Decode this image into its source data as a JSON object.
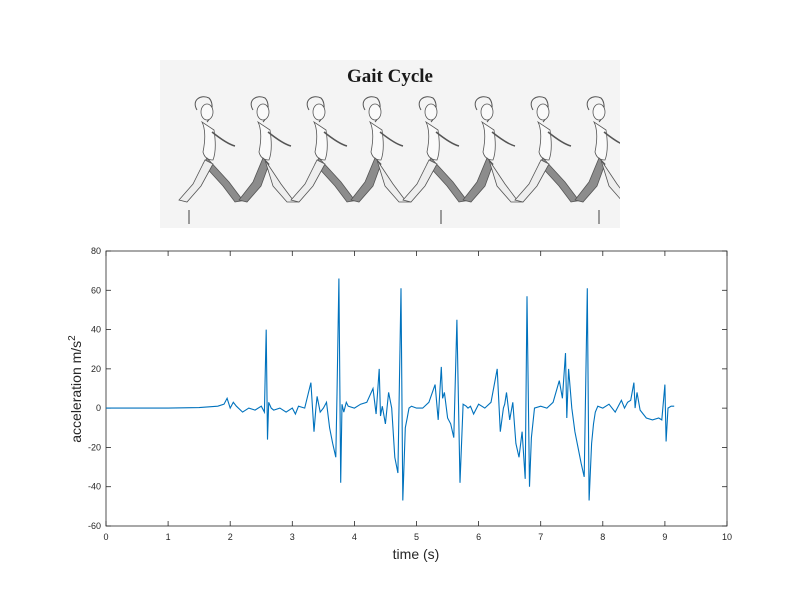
{
  "illustration": {
    "title": "Gait Cycle",
    "figure_count": 8
  },
  "colors": {
    "line": "#0072bd",
    "axis": "#262626",
    "leg_shade": "#8c8c8c",
    "figure_outline": "#555555"
  },
  "chart_data": {
    "type": "line",
    "title": "",
    "xlabel": "time (s)",
    "ylabel": "acceleration m/s",
    "ylabel_superscript": "2",
    "xlim": [
      0,
      10
    ],
    "ylim": [
      -60,
      80
    ],
    "xticks": [
      0,
      1,
      2,
      3,
      4,
      5,
      6,
      7,
      8,
      9,
      10
    ],
    "yticks": [
      -60,
      -40,
      -20,
      0,
      20,
      40,
      60,
      80
    ],
    "grid": false,
    "series": [
      {
        "x": [
          0,
          0.5,
          1.0,
          1.5,
          1.8,
          1.9,
          1.95,
          2.0,
          2.05,
          2.1,
          2.2,
          2.3,
          2.4,
          2.5,
          2.55,
          2.58,
          2.6,
          2.62,
          2.66,
          2.7,
          2.8,
          2.9,
          3.0,
          3.05,
          3.1,
          3.2,
          3.3,
          3.35,
          3.38,
          3.4,
          3.45,
          3.5,
          3.55,
          3.6,
          3.65,
          3.7,
          3.72,
          3.75,
          3.78,
          3.8,
          3.83,
          3.87,
          3.9,
          4.0,
          4.1,
          4.2,
          4.3,
          4.35,
          4.4,
          4.42,
          4.45,
          4.5,
          4.55,
          4.6,
          4.65,
          4.7,
          4.75,
          4.78,
          4.82,
          4.85,
          4.88,
          4.92,
          5.0,
          5.1,
          5.2,
          5.3,
          5.35,
          5.4,
          5.42,
          5.45,
          5.5,
          5.55,
          5.6,
          5.65,
          5.7,
          5.75,
          5.8,
          5.83,
          5.87,
          5.92,
          6.0,
          6.1,
          6.2,
          6.3,
          6.35,
          6.4,
          6.42,
          6.45,
          6.5,
          6.55,
          6.6,
          6.65,
          6.7,
          6.75,
          6.78,
          6.82,
          6.85,
          6.9,
          7.0,
          7.1,
          7.2,
          7.3,
          7.35,
          7.4,
          7.42,
          7.45,
          7.5,
          7.55,
          7.6,
          7.65,
          7.7,
          7.75,
          7.78,
          7.82,
          7.85,
          7.88,
          7.92,
          8.0,
          8.1,
          8.2,
          8.3,
          8.35,
          8.4,
          8.45,
          8.5,
          8.52,
          8.55,
          8.6,
          8.7,
          8.8,
          8.9,
          8.95,
          9.0,
          9.02,
          9.05,
          9.1,
          9.15
        ],
        "y": [
          0,
          0,
          0,
          0.3,
          1,
          2,
          5,
          0,
          3,
          1,
          -2,
          0,
          -1,
          1,
          -2,
          40,
          -16,
          3,
          0,
          -1,
          0,
          -2,
          0,
          -3,
          1,
          0,
          13,
          -12,
          0,
          6,
          -2,
          0,
          3,
          -10,
          -18,
          -25,
          7,
          66,
          -38,
          2,
          -2,
          3,
          1,
          0,
          2,
          3,
          10,
          -3,
          20,
          -4,
          1,
          -8,
          8,
          0,
          -25,
          -33,
          61,
          -47,
          -10,
          -5,
          0,
          1,
          0,
          0,
          3,
          12,
          -6,
          21,
          5,
          8,
          -5,
          -8,
          -15,
          45,
          -38,
          2,
          1,
          0,
          1,
          -3,
          2,
          0,
          3,
          20,
          -12,
          0,
          2,
          8,
          -6,
          3,
          -18,
          -25,
          -12,
          -36,
          57,
          -40,
          -15,
          0,
          1,
          0,
          3,
          14,
          5,
          28,
          -5,
          20,
          0,
          -12,
          -20,
          -28,
          -35,
          61,
          -47,
          -18,
          -8,
          -2,
          1,
          0,
          2,
          -2,
          4,
          0,
          3,
          4,
          13,
          0,
          8,
          -1,
          -5,
          -6,
          -5,
          -6,
          12,
          -17,
          0,
          1,
          1
        ]
      }
    ]
  }
}
